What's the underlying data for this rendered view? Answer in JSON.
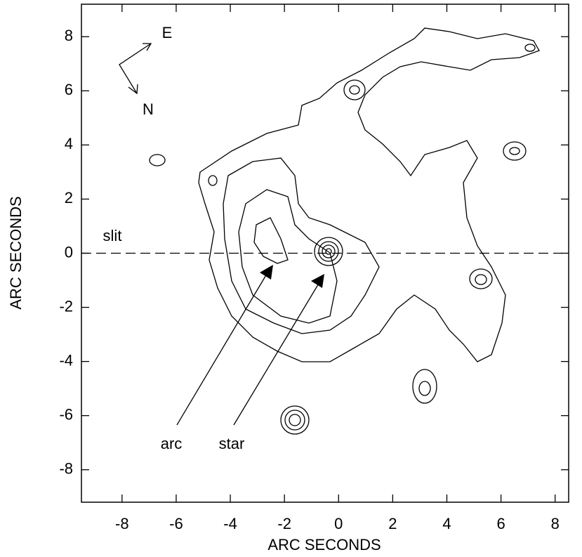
{
  "chart_data": {
    "type": "contour",
    "x_label": "ARC SECONDS",
    "y_label": "ARC SECONDS",
    "xlim": [
      -9.5,
      8.5
    ],
    "ylim": [
      -9.2,
      9.2
    ],
    "xticks": [
      -8,
      -6,
      -4,
      -2,
      0,
      2,
      4,
      6,
      8
    ],
    "yticks": [
      -8,
      -6,
      -4,
      -2,
      0,
      2,
      4,
      6,
      8
    ],
    "annotations": [
      {
        "text": "slit",
        "y": 0
      },
      {
        "text": "arc"
      },
      {
        "text": "star"
      }
    ],
    "compass": {
      "east": "E",
      "north": "N"
    }
  }
}
